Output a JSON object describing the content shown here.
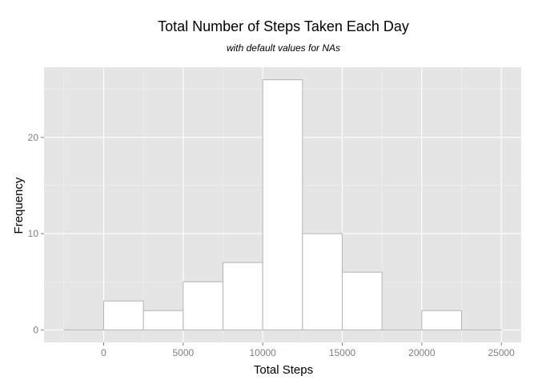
{
  "chart_data": {
    "type": "bar",
    "title": "Total Number of Steps Taken Each Day",
    "subtitle": "with default values for NAs",
    "xlabel": "Total Steps",
    "ylabel": "Frequency",
    "bin_width": 2500,
    "bins": [
      {
        "start": -2500,
        "end": 0,
        "count": 0
      },
      {
        "start": 0,
        "end": 2500,
        "count": 3
      },
      {
        "start": 2500,
        "end": 5000,
        "count": 2
      },
      {
        "start": 5000,
        "end": 7500,
        "count": 5
      },
      {
        "start": 7500,
        "end": 10000,
        "count": 7
      },
      {
        "start": 10000,
        "end": 12500,
        "count": 26
      },
      {
        "start": 12500,
        "end": 15000,
        "count": 10
      },
      {
        "start": 15000,
        "end": 17500,
        "count": 6
      },
      {
        "start": 17500,
        "end": 20000,
        "count": 0
      },
      {
        "start": 20000,
        "end": 22500,
        "count": 2
      },
      {
        "start": 22500,
        "end": 25000,
        "count": 0
      }
    ],
    "xlim": [
      -3750,
      26250
    ],
    "ylim": [
      -1.3,
      27.3
    ],
    "x_ticks": [
      0,
      5000,
      10000,
      15000,
      20000,
      25000
    ],
    "x_tick_labels": [
      "0",
      "5000",
      "10000",
      "15000",
      "20000",
      "25000"
    ],
    "y_ticks": [
      0,
      10,
      20
    ],
    "y_tick_labels": [
      "0",
      "10",
      "20"
    ],
    "grid": true,
    "colors": {
      "panel_background": "#e5e5e5",
      "grid_major": "#ffffff",
      "grid_minor": "#f2f2f2",
      "bar_fill": "#ffffff",
      "bar_outline": "#b3b3b3"
    }
  }
}
